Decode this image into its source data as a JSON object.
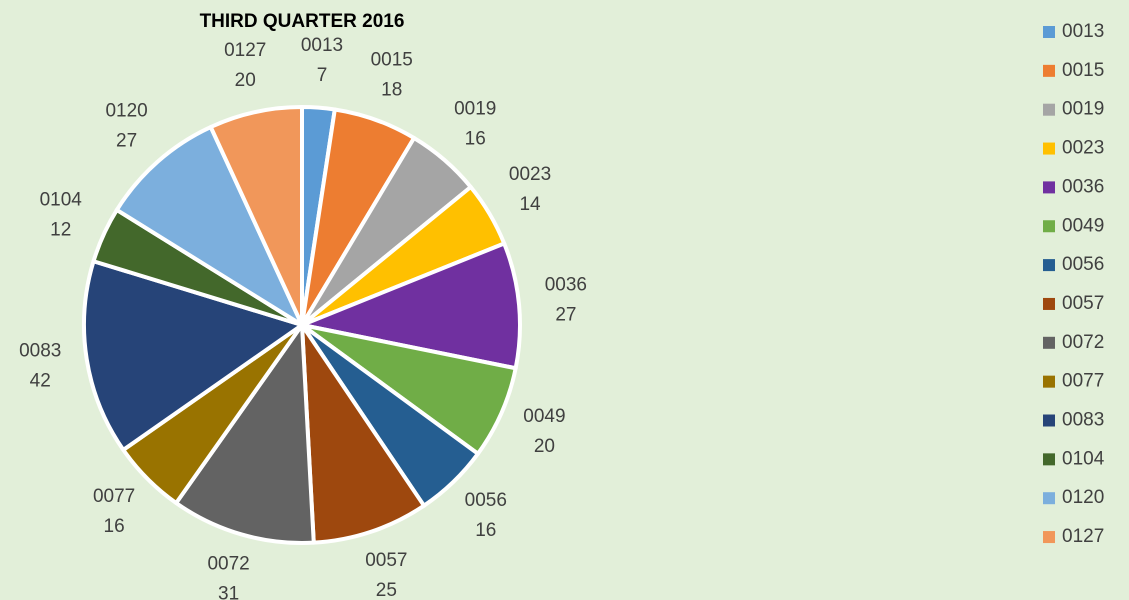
{
  "chart_data": {
    "type": "pie",
    "title": "THIRD QUARTER 2016",
    "categories": [
      "0013",
      "0015",
      "0019",
      "0023",
      "0036",
      "0049",
      "0056",
      "0057",
      "0072",
      "0077",
      "0083",
      "0104",
      "0120",
      "0127"
    ],
    "values": [
      7,
      18,
      16,
      14,
      27,
      20,
      16,
      25,
      31,
      16,
      42,
      12,
      27,
      20
    ],
    "colors": [
      "#5b9bd5",
      "#ed7d31",
      "#a5a5a5",
      "#ffc000",
      "#7030a0",
      "#70ad47",
      "#255e91",
      "#9e480e",
      "#636363",
      "#997300",
      "#264478",
      "#43682b",
      "#7cafdd",
      "#f1975a"
    ],
    "legend": "right"
  }
}
